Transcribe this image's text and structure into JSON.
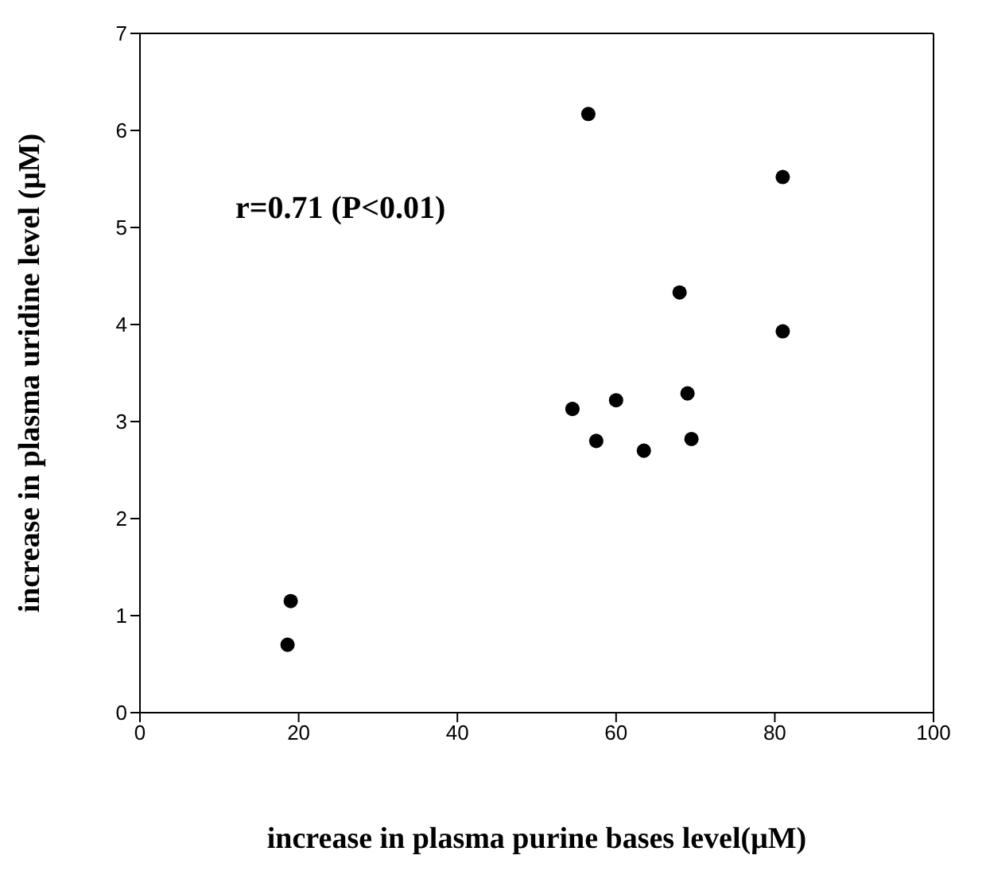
{
  "chart_data": {
    "type": "scatter",
    "xlabel": "increase in plasma purine bases  level(μM)",
    "ylabel": "increase in plasma uridine level (μM)",
    "x": [
      18.6,
      19,
      54.5,
      56.5,
      57.5,
      60,
      63.5,
      68,
      69,
      69.5,
      81,
      81
    ],
    "series": [
      {
        "color": "#000000",
        "values": [
          0.7,
          1.15,
          3.13,
          6.17,
          2.8,
          3.22,
          2.7,
          4.33,
          3.29,
          2.82,
          5.52,
          3.93
        ]
      }
    ],
    "xlim": [
      0,
      100
    ],
    "xticks": [
      0,
      20,
      40,
      60,
      80,
      100
    ],
    "ylim": [
      0,
      7
    ],
    "yticks": [
      0,
      1,
      2,
      3,
      4,
      5,
      6,
      7
    ],
    "annotations": [
      "r=0.71 (P<0.01)"
    ],
    "marker": "circle"
  }
}
